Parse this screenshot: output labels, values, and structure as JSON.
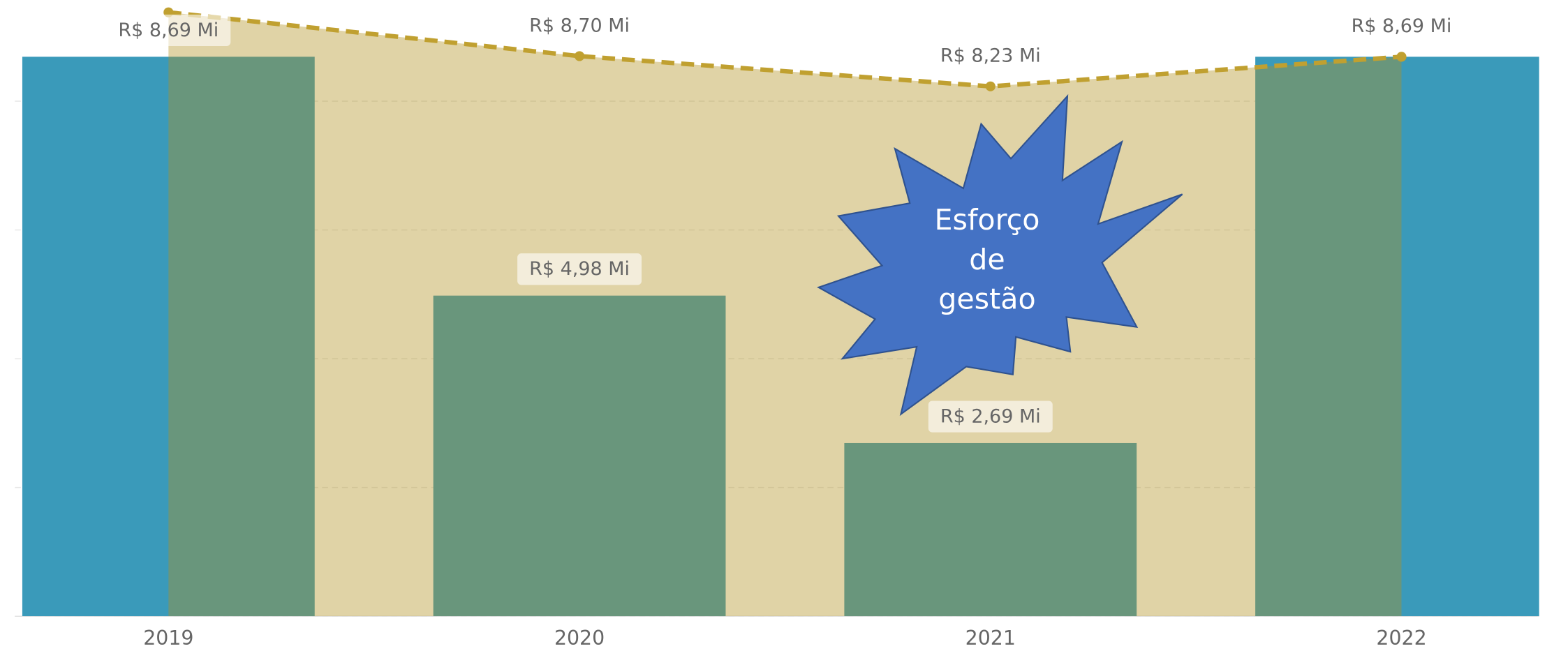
{
  "chart_data": {
    "type": "bar_line",
    "categories": [
      "2019",
      "2020",
      "2021",
      "2022"
    ],
    "series": [
      {
        "type": "bar",
        "color": "#3a9aba",
        "values": [
          8.69,
          4.98,
          2.69,
          8.69
        ],
        "value_labels": [
          "R$ 8,69 Mi",
          "R$ 4,98 Mi",
          "R$ 2,69 Mi",
          null
        ]
      },
      {
        "type": "line",
        "color": "#c0a030",
        "area_color": "#b19120",
        "values": [
          9.38,
          8.7,
          8.23,
          8.69
        ],
        "value_labels": [
          null,
          "R$ 8,70 Mi",
          "R$ 8,23 Mi",
          "R$ 8,69 Mi"
        ]
      }
    ],
    "ylim": [
      0,
      9.57
    ],
    "yticks": [
      0,
      2,
      4,
      6,
      8
    ],
    "grid": true
  },
  "annotation": {
    "lines": [
      "Esforço",
      "de",
      "gestão"
    ]
  }
}
